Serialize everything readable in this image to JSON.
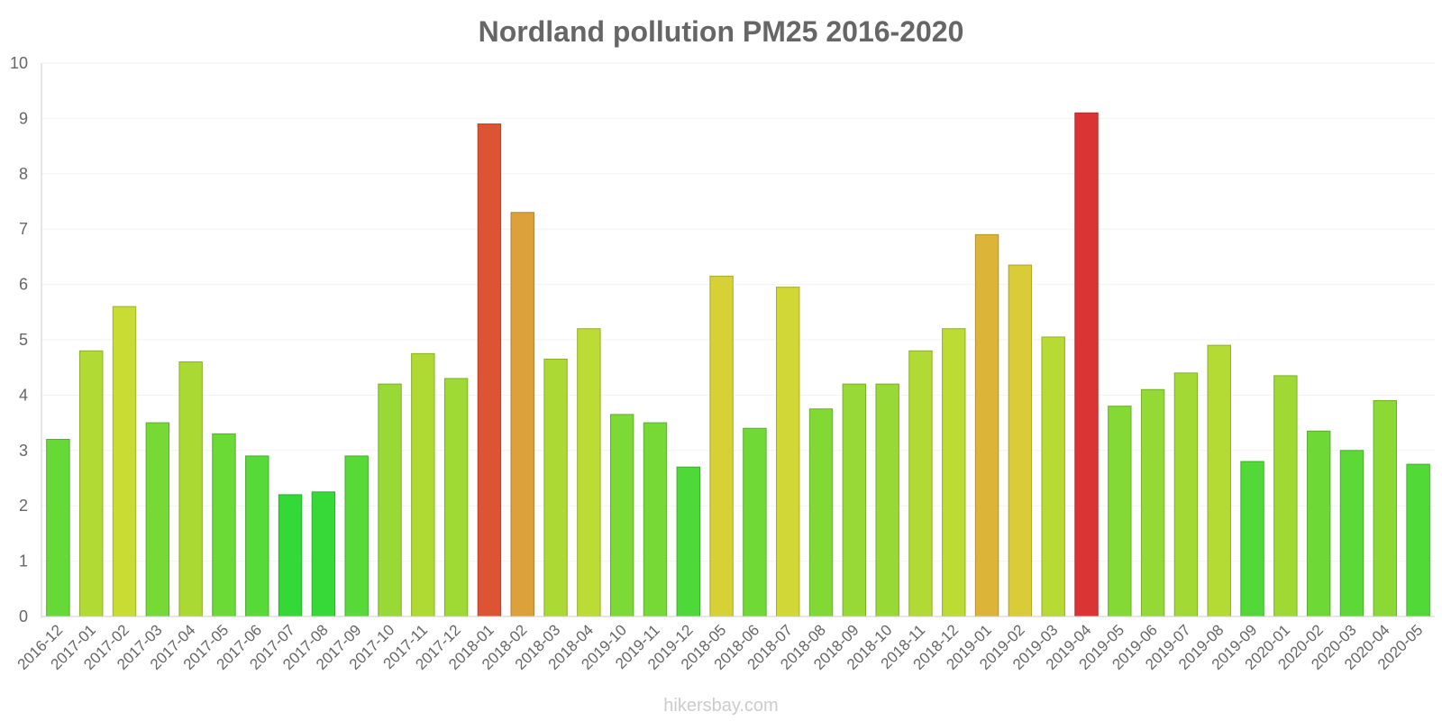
{
  "chart_data": {
    "type": "bar",
    "title": "Nordland pollution PM25 2016-2020",
    "xlabel": "",
    "ylabel": "",
    "ylim": [
      0,
      10
    ],
    "yticks": [
      "0",
      "1",
      "2",
      "3",
      "4",
      "5",
      "6",
      "7",
      "8",
      "9",
      "10"
    ],
    "grid": true,
    "categories": [
      "2016-12",
      "2017-01",
      "2017-02",
      "2017-03",
      "2017-04",
      "2017-05",
      "2017-06",
      "2017-07",
      "2017-08",
      "2017-09",
      "2017-10",
      "2017-11",
      "2017-12",
      "2018-01",
      "2018-02",
      "2018-03",
      "2018-04",
      "2019-10",
      "2019-11",
      "2019-12",
      "2018-05",
      "2018-06",
      "2018-07",
      "2018-08",
      "2018-09",
      "2018-10",
      "2018-11",
      "2018-12",
      "2019-01",
      "2019-02",
      "2019-03",
      "2019-04",
      "2019-05",
      "2019-06",
      "2019-07",
      "2019-08",
      "2019-09",
      "2020-01",
      "2020-02",
      "2020-03",
      "2020-04",
      "2020-05"
    ],
    "values": [
      3.2,
      4.8,
      5.6,
      3.5,
      4.6,
      3.3,
      2.9,
      2.2,
      2.25,
      2.9,
      4.2,
      4.75,
      4.3,
      8.9,
      7.3,
      4.65,
      5.2,
      3.65,
      3.5,
      2.7,
      6.15,
      3.4,
      5.95,
      3.75,
      4.2,
      4.2,
      4.8,
      5.2,
      6.9,
      6.35,
      5.05,
      9.1,
      3.8,
      4.1,
      4.4,
      4.9,
      2.8,
      4.35,
      3.35,
      3.0,
      3.9,
      2.75
    ]
  },
  "credit": "hikersbay.com"
}
